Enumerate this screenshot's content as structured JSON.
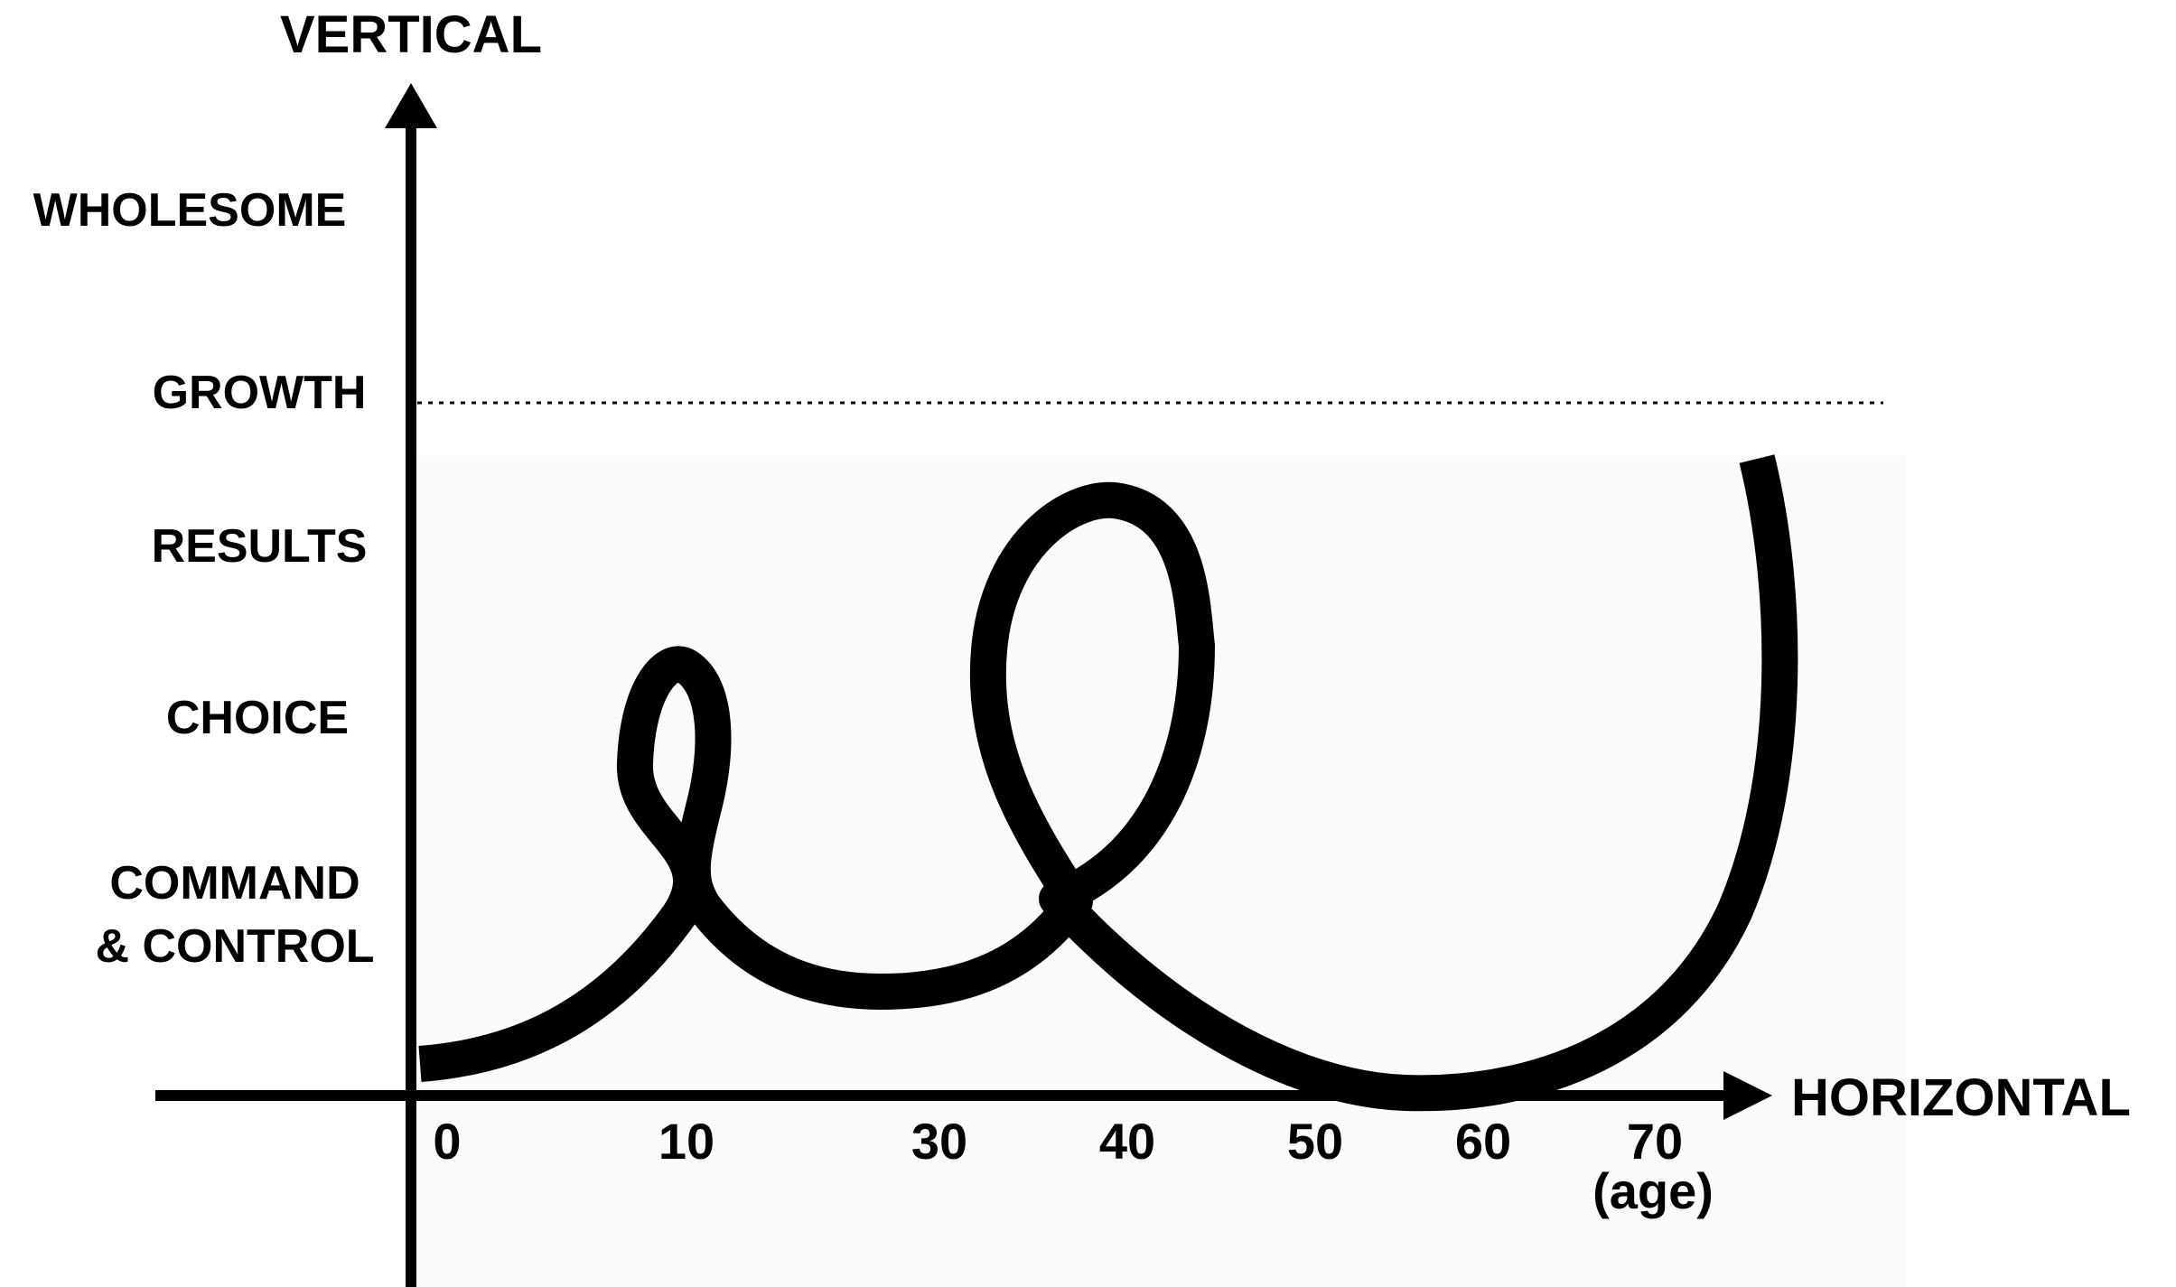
{
  "axes": {
    "vertical_label": "VERTICAL",
    "horizontal_label": "HORIZONTAL",
    "age_unit": "(age)"
  },
  "levels": [
    {
      "id": "wholesome",
      "label": "WHOLESOME"
    },
    {
      "id": "growth",
      "label": "GROWTH"
    },
    {
      "id": "results",
      "label": "RESULTS"
    },
    {
      "id": "choice",
      "label": "CHOICE"
    },
    {
      "id": "command-control",
      "label_line1": "COMMAND",
      "label_line2": "& CONTROL"
    }
  ],
  "ticks": [
    "0",
    "10",
    "30",
    "40",
    "50",
    "60",
    "70"
  ],
  "growth_line": {
    "style": "dotted"
  },
  "colors": {
    "ink": "#000000",
    "background": "#ffffff",
    "panel": "#fafafa"
  }
}
